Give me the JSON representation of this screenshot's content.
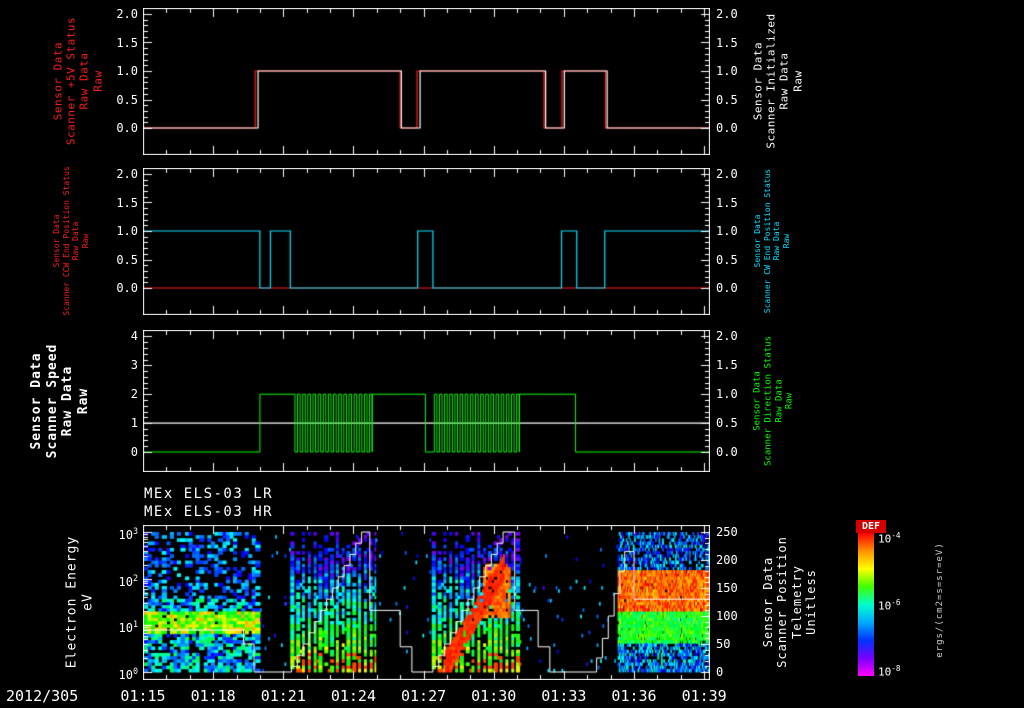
{
  "titles": {
    "lr": "MEx ELS-03 LR",
    "hr": "MEx ELS-03 HR"
  },
  "x_axis": {
    "date": "2012/305",
    "t_max": 24.25,
    "tick_minutes": [
      0,
      3,
      6,
      9,
      12,
      15,
      18,
      21,
      24
    ],
    "tick_labels": [
      "01:15",
      "01:18",
      "01:21",
      "01:24",
      "01:27",
      "01:30",
      "01:33",
      "01:36",
      "01:39"
    ]
  },
  "panels": [
    {
      "left_label": {
        "lines": [
          "Sensor Data",
          "Scanner +5V Status",
          "Raw Data",
          "Raw"
        ],
        "color": "#ff1a1a"
      },
      "right_label": {
        "lines": [
          "Sensor Data",
          "Scanner Initialized",
          "Raw Data",
          "Raw"
        ],
        "color": "#ffffff"
      },
      "left_ticks": [
        "0.0",
        "0.5",
        "1.0",
        "1.5",
        "2.0"
      ],
      "right_ticks": [
        "0.0",
        "0.5",
        "1.0",
        "1.5",
        "2.0"
      ]
    },
    {
      "left_label": {
        "lines": [
          "Sensor Data",
          "Scanner CCW End Position Status",
          "Raw Data",
          "Raw"
        ],
        "color": "#ff1a1a"
      },
      "right_label": {
        "lines": [
          "Sensor Data",
          "Scanner CW End Position Status",
          "Raw Data",
          "Raw"
        ],
        "color": "#00e0ff"
      },
      "left_ticks": [
        "0.0",
        "0.5",
        "1.0",
        "1.5",
        "2.0"
      ],
      "right_ticks": [
        "0.0",
        "0.5",
        "1.0",
        "1.5",
        "2.0"
      ]
    },
    {
      "left_label": {
        "lines": [
          "Sensor Data",
          "Scanner Speed",
          "Raw Data",
          "Raw"
        ],
        "color": "#ffffff"
      },
      "right_label": {
        "lines": [
          "Sensor Data",
          "Scanner Direction Status",
          "Raw Data",
          "Raw"
        ],
        "color": "#00ff00"
      },
      "left_ticks": [
        "0",
        "1",
        "2",
        "3",
        "4"
      ],
      "right_ticks": [
        "0.0",
        "0.5",
        "1.0",
        "1.5",
        "2.0"
      ]
    },
    {
      "left_label": {
        "lines": [
          "Electron Energy",
          "eV"
        ],
        "color": "#ffffff"
      },
      "right_label": {
        "lines": [
          "Sensor Data",
          "Scanner Position",
          "Telemetry",
          "Unitless"
        ],
        "color": "#ffffff"
      },
      "left_ticks_exponents": [
        0,
        1,
        2,
        3
      ],
      "right_ticks": [
        "0",
        "50",
        "100",
        "150",
        "200",
        "250"
      ]
    }
  ],
  "colorbar": {
    "title": "DEF",
    "units": "ergs/(cm2=s=sr=eV)",
    "tick_exponents": [
      -4,
      -6,
      -8
    ],
    "cap_color": "#d40000",
    "gradient": [
      "#ff0000",
      "#ff9000",
      "#ffff00",
      "#40ff00",
      "#00ffcc",
      "#00aaff",
      "#0033ff",
      "#7700ff",
      "#ff00ff"
    ]
  },
  "chart_data": [
    {
      "type": "line",
      "panel": 1,
      "x_unit": "UT minutes after 2012/305 01:15",
      "xlim": [
        0,
        24.25
      ],
      "ylim": [
        0,
        2
      ],
      "yticks": [
        0,
        0.5,
        1,
        1.5,
        2
      ],
      "series": [
        {
          "name": "Sensor Data Scanner +5V Status Raw",
          "color": "#ff1a1a",
          "mode": "step",
          "points": [
            [
              0,
              0
            ],
            [
              4.8,
              1
            ],
            [
              11.0,
              0
            ],
            [
              11.72,
              1
            ],
            [
              17.15,
              0
            ],
            [
              17.92,
              1
            ],
            [
              19.78,
              0
            ],
            [
              24.25,
              0
            ]
          ]
        },
        {
          "name": "Sensor Data Scanner Initialized Raw",
          "color": "#ffffff",
          "mode": "step",
          "points": [
            [
              0,
              0
            ],
            [
              4.92,
              1
            ],
            [
              11.05,
              0
            ],
            [
              11.85,
              1
            ],
            [
              17.22,
              0
            ],
            [
              18.02,
              1
            ],
            [
              19.85,
              0
            ],
            [
              24.25,
              0
            ]
          ]
        }
      ]
    },
    {
      "type": "line",
      "panel": 2,
      "xlim": [
        0,
        24.25
      ],
      "ylim": [
        0,
        2
      ],
      "yticks": [
        0,
        0.5,
        1,
        1.5,
        2
      ],
      "series": [
        {
          "name": "Sensor Data Scanner CCW End Position Status Raw",
          "color": "#ff1a1a",
          "mode": "step",
          "points": [
            [
              0,
              0
            ],
            [
              24.25,
              0
            ]
          ]
        },
        {
          "name": "Sensor Data Scanner CW End Position Status Raw",
          "color": "#00e0ff",
          "mode": "step",
          "points": [
            [
              0,
              1
            ],
            [
              5.0,
              0
            ],
            [
              5.45,
              1
            ],
            [
              6.3,
              0
            ],
            [
              11.75,
              1
            ],
            [
              12.4,
              0
            ],
            [
              17.9,
              1
            ],
            [
              18.55,
              0
            ],
            [
              19.75,
              1
            ],
            [
              24.25,
              1
            ]
          ]
        }
      ]
    },
    {
      "type": "line",
      "panel": 3,
      "xlim": [
        0,
        24.25
      ],
      "ylim_left": [
        0,
        4
      ],
      "ylim_right": [
        0,
        2
      ],
      "series": [
        {
          "name": "Sensor Data Scanner Speed Raw",
          "color": "#ffffff",
          "mode": "step",
          "axis": "left",
          "points": [
            [
              0,
              1
            ],
            [
              24.25,
              1
            ]
          ]
        },
        {
          "name": "Sensor Data Scanner Direction Status Raw",
          "color": "#00ff00",
          "mode": "segments",
          "axis": "left",
          "segments": [
            {
              "type": "step",
              "points": [
                [
                  0,
                  0
                ],
                [
                  5.0,
                  2
                ],
                [
                  6.5,
                  2
                ]
              ]
            },
            {
              "type": "square",
              "t0": 6.5,
              "t1": 9.8,
              "period": 0.22,
              "lo": 0,
              "hi": 2
            },
            {
              "type": "step",
              "points": [
                [
                  9.8,
                  2
                ],
                [
                  12.08,
                  0
                ],
                [
                  12.35,
                  0
                ]
              ]
            },
            {
              "type": "square",
              "t0": 12.35,
              "t1": 16.1,
              "period": 0.22,
              "lo": 0,
              "hi": 2
            },
            {
              "type": "step",
              "points": [
                [
                  16.1,
                  2
                ],
                [
                  18.5,
                  0
                ],
                [
                  24.25,
                  0
                ]
              ]
            }
          ]
        }
      ]
    },
    {
      "type": "spectrogram",
      "panel": 4,
      "titles": [
        "MEx ELS-03 LR",
        "MEx ELS-03 HR"
      ],
      "xlim": [
        0,
        24.25
      ],
      "y_log_range_eV": [
        1,
        1000
      ],
      "value_label": "DEF",
      "value_units": "ergs/(cm2=s=sr=eV)",
      "value_log_range": [
        -8,
        -4
      ],
      "bursts": [
        {
          "style": "speckle",
          "t0": 0.05,
          "t1": 4.95,
          "density": 0.55,
          "band_logE": [
            0.82,
            1.28
          ],
          "band_value": [
            0.55,
            0.85
          ],
          "base_value": [
            0.12,
            0.52
          ]
        },
        {
          "style": "columns",
          "t0": 6.3,
          "t1": 9.9,
          "col_period": 0.12,
          "base_top": 0.78,
          "slope": 0.5,
          "red_lowE_p": 0.38
        },
        {
          "style": "columns",
          "t0": 12.35,
          "t1": 16.15,
          "col_period": 0.12,
          "base_top": 0.78,
          "slope": 0.5,
          "red_lowE_p": 0.38,
          "diag": {
            "t0": 12.9,
            "t1": 15.45,
            "logE0": 0.15,
            "logE1": 2.25,
            "halfwidth": 0.3,
            "value": 0.96
          },
          "blob": {
            "t0": 14.55,
            "t1": 15.65,
            "logE": [
              1.15,
              2.35
            ],
            "value": 0.9
          }
        },
        {
          "style": "bands",
          "t0": 20.3,
          "t1": 24.25,
          "bands": [
            {
              "logE": [
                1.32,
                2.18
              ],
              "value": [
                0.82,
                1.0
              ],
              "p": 0.97
            },
            {
              "logE": [
                0.62,
                1.32
              ],
              "value": [
                0.45,
                0.72
              ],
              "p": 0.95
            },
            {
              "logE": [
                2.18,
                3.0
              ],
              "value": [
                0.08,
                0.4
              ],
              "p": 0.4
            },
            {
              "logE": [
                0.0,
                0.62
              ],
              "value": [
                0.1,
                0.45
              ],
              "p": 0.55
            }
          ]
        }
      ],
      "background_speckle": {
        "p": 0.012,
        "value": [
          0.08,
          0.4
        ]
      },
      "overlay": {
        "name": "Sensor Data Scanner Position Telemetry",
        "color": "#ffffff",
        "axis": "right",
        "ylim": [
          0,
          250
        ],
        "mode": "step",
        "points": [
          [
            0,
            75
          ],
          [
            4.3,
            50
          ],
          [
            4.75,
            0
          ],
          [
            6.35,
            10
          ],
          [
            6.6,
            30
          ],
          [
            6.85,
            50
          ],
          [
            7.1,
            70
          ],
          [
            7.35,
            90
          ],
          [
            7.6,
            110
          ],
          [
            7.85,
            130
          ],
          [
            8.1,
            150
          ],
          [
            8.35,
            170
          ],
          [
            8.6,
            190
          ],
          [
            8.85,
            210
          ],
          [
            9.1,
            230
          ],
          [
            9.35,
            250
          ],
          [
            9.7,
            110
          ],
          [
            11.0,
            45
          ],
          [
            11.5,
            0
          ],
          [
            12.4,
            10
          ],
          [
            12.65,
            30
          ],
          [
            12.9,
            50
          ],
          [
            13.15,
            70
          ],
          [
            13.4,
            90
          ],
          [
            13.65,
            110
          ],
          [
            13.9,
            130
          ],
          [
            14.15,
            150
          ],
          [
            14.4,
            170
          ],
          [
            14.65,
            190
          ],
          [
            14.9,
            210
          ],
          [
            15.15,
            230
          ],
          [
            15.4,
            250
          ],
          [
            15.9,
            110
          ],
          [
            16.9,
            45
          ],
          [
            17.4,
            0
          ],
          [
            19.4,
            25
          ],
          [
            19.65,
            60
          ],
          [
            19.9,
            100
          ],
          [
            20.15,
            140
          ],
          [
            20.4,
            180
          ],
          [
            20.6,
            215
          ],
          [
            21.0,
            130
          ],
          [
            24.25,
            130
          ]
        ]
      }
    }
  ]
}
